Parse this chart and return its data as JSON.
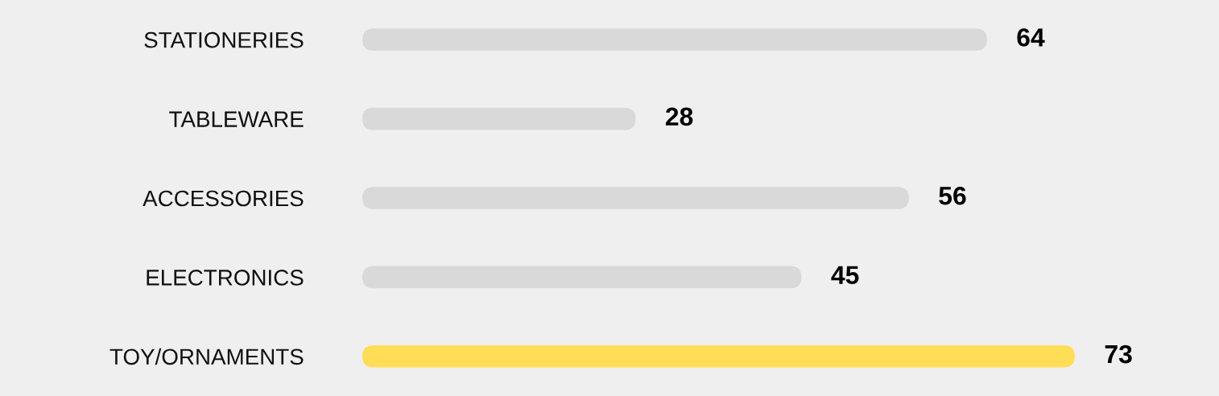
{
  "chart_data": {
    "type": "bar",
    "orientation": "horizontal",
    "categories": [
      "STATIONERIES",
      "TABLEWARE",
      "ACCESSORIES",
      "ELECTRONICS",
      "TOY/ORNAMENTS"
    ],
    "values": [
      64,
      28,
      56,
      45,
      73
    ],
    "colors": [
      "#d9d9d9",
      "#d9d9d9",
      "#d9d9d9",
      "#d9d9d9",
      "#ffdd57"
    ],
    "data_labels": true,
    "grid": false,
    "legend": false
  }
}
